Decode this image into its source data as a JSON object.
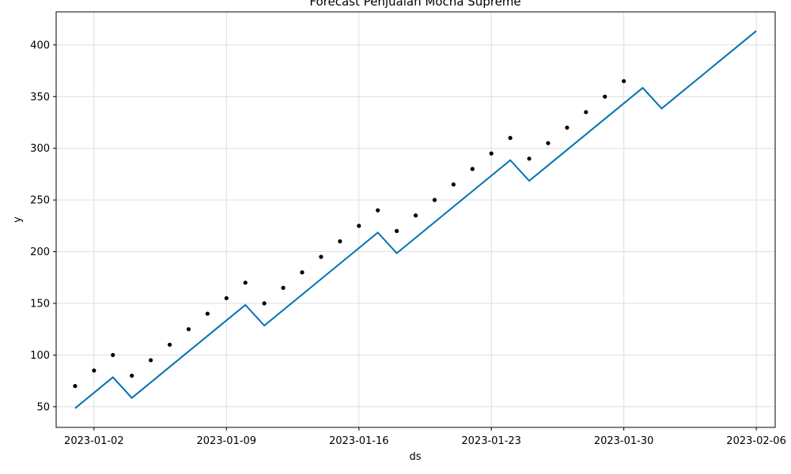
{
  "chart_data": {
    "type": "line",
    "title": "Forecast Penjualan Mocha Supreme",
    "xlabel": "ds",
    "ylabel": "y",
    "x_ticks": [
      "2023-01-02",
      "2023-01-09",
      "2023-01-16",
      "2023-01-23",
      "2023-01-30",
      "2023-02-06"
    ],
    "y_ticks": [
      50,
      100,
      150,
      200,
      250,
      300,
      350,
      400
    ],
    "xlim": [
      "2022-12-31",
      "2023-02-07"
    ],
    "ylim": [
      30,
      432
    ],
    "grid": true,
    "series": [
      {
        "kind": "scatter",
        "color": "#000000",
        "x": [
          "2023-01-01",
          "2023-01-02",
          "2023-01-03",
          "2023-01-04",
          "2023-01-05",
          "2023-01-06",
          "2023-01-07",
          "2023-01-08",
          "2023-01-09",
          "2023-01-10",
          "2023-01-11",
          "2023-01-12",
          "2023-01-13",
          "2023-01-14",
          "2023-01-15",
          "2023-01-16",
          "2023-01-17",
          "2023-01-18",
          "2023-01-19",
          "2023-01-20",
          "2023-01-21",
          "2023-01-22",
          "2023-01-23",
          "2023-01-24",
          "2023-01-25",
          "2023-01-26",
          "2023-01-27",
          "2023-01-28",
          "2023-01-29",
          "2023-01-30"
        ],
        "y": [
          70,
          85,
          100,
          80,
          95,
          110,
          125,
          140,
          155,
          170,
          150,
          165,
          180,
          195,
          210,
          225,
          240,
          220,
          235,
          250,
          265,
          280,
          295,
          310,
          290,
          305,
          320,
          335,
          350,
          365
        ]
      },
      {
        "kind": "line",
        "color": "#0072B2",
        "x": [
          "2023-01-01",
          "2023-01-02",
          "2023-01-03",
          "2023-01-04",
          "2023-01-05",
          "2023-01-06",
          "2023-01-07",
          "2023-01-08",
          "2023-01-09",
          "2023-01-10",
          "2023-01-11",
          "2023-01-12",
          "2023-01-13",
          "2023-01-14",
          "2023-01-15",
          "2023-01-16",
          "2023-01-17",
          "2023-01-18",
          "2023-01-19",
          "2023-01-20",
          "2023-01-21",
          "2023-01-22",
          "2023-01-23",
          "2023-01-24",
          "2023-01-25",
          "2023-01-26",
          "2023-01-27",
          "2023-01-28",
          "2023-01-29",
          "2023-01-30",
          "2023-01-31",
          "2023-02-01",
          "2023-02-02",
          "2023-02-03",
          "2023-02-04",
          "2023-02-05",
          "2023-02-06"
        ],
        "y": [
          48.5,
          63.5,
          78.5,
          58.5,
          73.5,
          88.5,
          103.5,
          118.5,
          133.5,
          148.5,
          128.5,
          143.5,
          158.5,
          173.5,
          188.5,
          203.5,
          218.5,
          198.5,
          213.5,
          228.5,
          243.5,
          258.5,
          273.5,
          288.5,
          268.5,
          283.5,
          298.5,
          313.5,
          328.5,
          343.5,
          358.5,
          338.5,
          353.5,
          368.5,
          383.5,
          398.5,
          413.5
        ]
      }
    ]
  }
}
